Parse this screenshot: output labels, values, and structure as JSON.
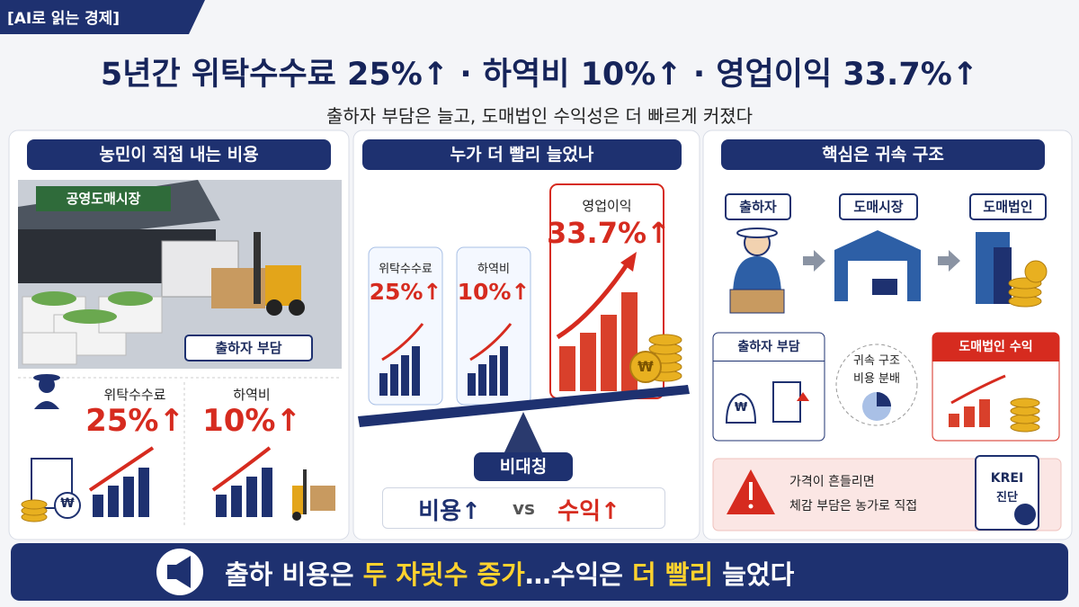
{
  "header": {
    "badge": "[AI로 읽는 경제]",
    "title": "5년간 위탁수수료 25%↑ · 하역비 10%↑ · 영업이익 33.7%↑",
    "subtitle": "출하자 부담은 늘고, 도매법인 수익성은 더 빠르게 커졌다"
  },
  "panel1": {
    "title": "농민이 직접 내는 비용",
    "sign": "공영도매시장",
    "label": "출하자 부담",
    "items": [
      {
        "label": "위탁수수료",
        "value": "25%↑"
      },
      {
        "label": "하역비",
        "value": "10%↑"
      }
    ]
  },
  "panel2": {
    "title": "누가 더 빨리 늘었나",
    "cards": [
      {
        "label": "위탁수수료",
        "value": "25%↑"
      },
      {
        "label": "하역비",
        "value": "10%↑"
      },
      {
        "label": "영업이익",
        "value": "33.7%↑"
      }
    ],
    "fulcrum": "비대칭",
    "compare": [
      "비용↑",
      "vs",
      "수익↑"
    ]
  },
  "panel3": {
    "title": "핵심은 귀속 구조",
    "flow": [
      "출하자",
      "도매시장",
      "도매법인"
    ],
    "left_box": "출하자 부담",
    "center": [
      "귀속 구조",
      "비용 분배"
    ],
    "right_box": "도매법인 수익",
    "warning": [
      "가격이 흔들리면",
      "체감 부담은 농가로 직접"
    ],
    "clipboard": [
      "KREI",
      "진단"
    ]
  },
  "currency": "₩",
  "footer": {
    "segments": [
      "출하 비용은 ",
      "두 자릿수 증가",
      "…수익은 ",
      "더 빨리",
      " 늘었다"
    ]
  }
}
